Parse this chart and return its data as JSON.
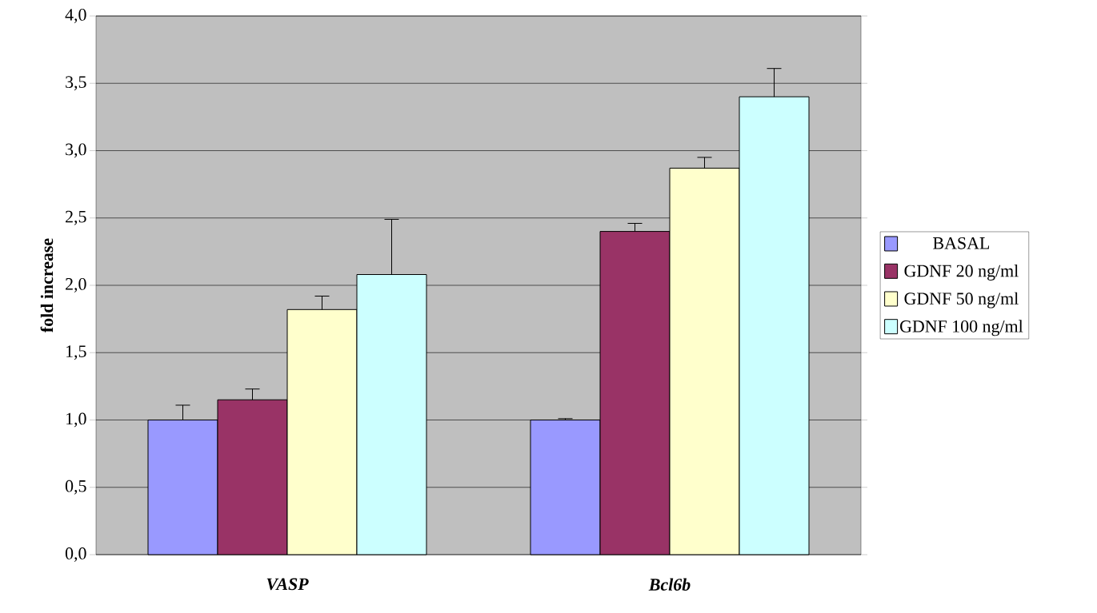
{
  "chart_data": {
    "type": "bar",
    "ylabel": "fold increase",
    "categories": [
      "VASP",
      "Bcl6b"
    ],
    "series": [
      {
        "name": "BASAL",
        "color": "#9999ff",
        "values": [
          1.0,
          1.0
        ],
        "errors": [
          0.11,
          0.01
        ]
      },
      {
        "name": "GDNF 20 ng/ml",
        "color": "#993366",
        "values": [
          1.15,
          2.4
        ],
        "errors": [
          0.08,
          0.06
        ]
      },
      {
        "name": "GDNF 50 ng/ml",
        "color": "#ffffcc",
        "values": [
          1.82,
          2.87
        ],
        "errors": [
          0.1,
          0.08
        ]
      },
      {
        "name": "GDNF 100 ng/ml",
        "color": "#ccffff",
        "values": [
          2.08,
          3.4
        ],
        "errors": [
          0.41,
          0.21
        ]
      }
    ],
    "ylim": [
      0,
      4
    ],
    "yticks": [
      {
        "value": 0,
        "label": "0,0"
      },
      {
        "value": 0.5,
        "label": "0,5"
      },
      {
        "value": 1,
        "label": "1,0"
      },
      {
        "value": 1.5,
        "label": "1,5"
      },
      {
        "value": 2,
        "label": "2,0"
      },
      {
        "value": 2.5,
        "label": "2,5"
      },
      {
        "value": 3,
        "label": "3,0"
      },
      {
        "value": 3.5,
        "label": "3,5"
      },
      {
        "value": 4,
        "label": "4,0"
      }
    ],
    "grid": "y",
    "legend": "right"
  }
}
